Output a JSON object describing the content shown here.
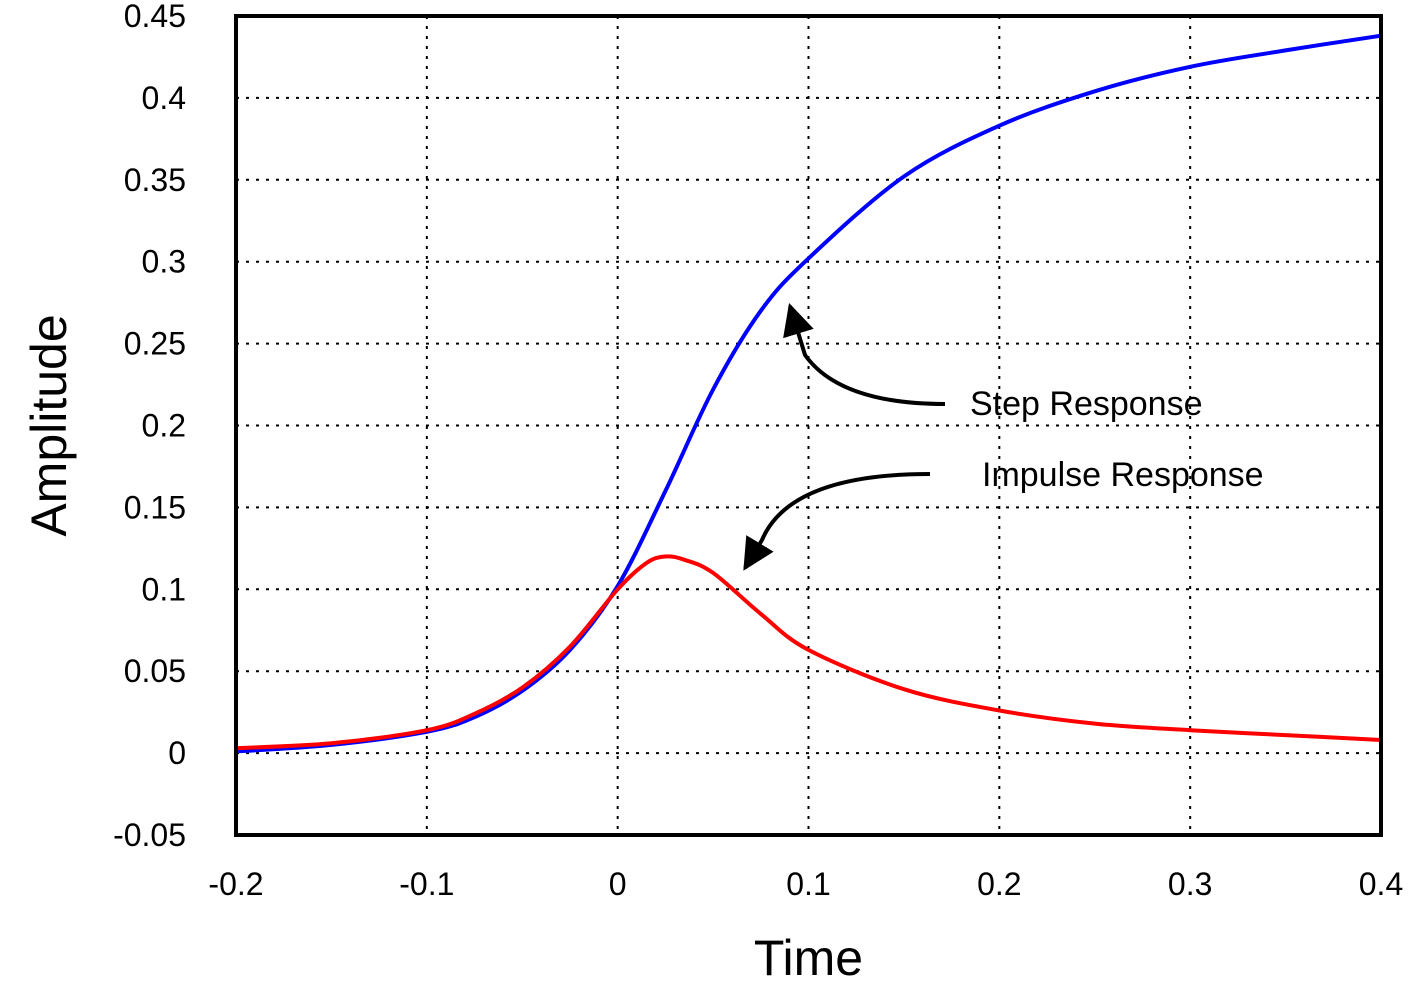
{
  "chart_data": {
    "type": "line",
    "xlabel": "Time",
    "ylabel": "Amplitude",
    "xlim": [
      -0.2,
      0.4
    ],
    "ylim": [
      -0.05,
      0.45
    ],
    "xticks": [
      "-0.2",
      "-0.1",
      "0",
      "0.1",
      "0.2",
      "0.3",
      "0.4"
    ],
    "yticks": [
      "-0.05",
      "0",
      "0.05",
      "0.1",
      "0.15",
      "0.2",
      "0.25",
      "0.3",
      "0.35",
      "0.4",
      "0.45"
    ],
    "grid": true,
    "series": [
      {
        "name": "Step Response",
        "color": "#0000ff",
        "x": [
          -0.2,
          -0.15,
          -0.1,
          -0.075,
          -0.05,
          -0.025,
          0,
          0.025,
          0.05,
          0.075,
          0.1,
          0.15,
          0.2,
          0.25,
          0.3,
          0.35,
          0.4
        ],
        "y": [
          0.001,
          0.005,
          0.013,
          0.022,
          0.038,
          0.063,
          0.102,
          0.16,
          0.222,
          0.27,
          0.302,
          0.352,
          0.383,
          0.404,
          0.419,
          0.429,
          0.438
        ]
      },
      {
        "name": "Impulse Response",
        "color": "#ff0000",
        "x": [
          -0.2,
          -0.15,
          -0.1,
          -0.075,
          -0.05,
          -0.025,
          0,
          0.015,
          0.025,
          0.035,
          0.05,
          0.075,
          0.1,
          0.15,
          0.2,
          0.25,
          0.3,
          0.35,
          0.4
        ],
        "y": [
          0.003,
          0.006,
          0.014,
          0.024,
          0.04,
          0.065,
          0.1,
          0.116,
          0.12,
          0.118,
          0.11,
          0.085,
          0.063,
          0.039,
          0.026,
          0.018,
          0.014,
          0.011,
          0.008
        ]
      }
    ],
    "annotations": [
      {
        "label": "Step Response",
        "x": 0.09,
        "y": 0.28
      },
      {
        "label": "Impulse Response",
        "x": 0.065,
        "y": 0.12
      }
    ]
  }
}
